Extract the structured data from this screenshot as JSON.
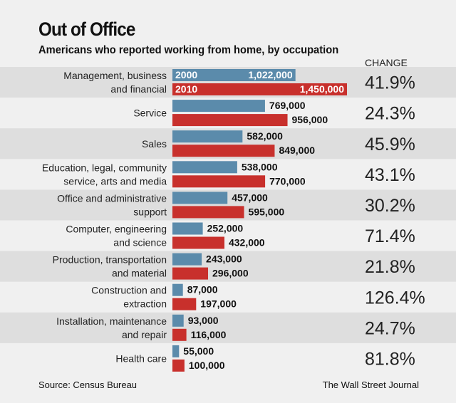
{
  "chart_data": {
    "type": "bar",
    "orientation": "horizontal",
    "title": "Out of Office",
    "subtitle": "Americans who reported working from home, by occupation",
    "change_header": "CHANGE",
    "categories": [
      [
        "Management, business",
        "and financial"
      ],
      [
        "Service"
      ],
      [
        "Sales"
      ],
      [
        "Education, legal, community",
        "service, arts and media"
      ],
      [
        "Office and administrative",
        "support"
      ],
      [
        "Computer, engineering",
        "and science"
      ],
      [
        "Production, transportation",
        "and material"
      ],
      [
        "Construction and",
        "extraction"
      ],
      [
        "Installation, maintenance",
        "and repair"
      ],
      [
        "Health care"
      ]
    ],
    "series": [
      {
        "name": "2000",
        "color": "#5b8bab",
        "values": [
          1022000,
          769000,
          582000,
          538000,
          457000,
          252000,
          243000,
          87000,
          93000,
          55000
        ],
        "labels": [
          "1,022,000",
          "769,000",
          "582,000",
          "538,000",
          "457,000",
          "252,000",
          "243,000",
          "87,000",
          "93,000",
          "55,000"
        ]
      },
      {
        "name": "2010",
        "color": "#c8302c",
        "values": [
          1450000,
          956000,
          849000,
          770000,
          595000,
          432000,
          296000,
          197000,
          116000,
          100000
        ],
        "labels": [
          "1,450,000",
          "956,000",
          "849,000",
          "770,000",
          "595,000",
          "432,000",
          "296,000",
          "197,000",
          "116,000",
          "100,000"
        ]
      }
    ],
    "change": [
      "41.9%",
      "24.3%",
      "45.9%",
      "43.1%",
      "30.2%",
      "71.4%",
      "21.8%",
      "126.4%",
      "24.7%",
      "81.8%"
    ],
    "xlim": [
      0,
      1450000
    ],
    "grid": false,
    "source": "Source: Census Bureau",
    "credit": "The Wall Street Journal"
  },
  "colors": {
    "background": "#f0f0f0",
    "band": "#dedede"
  }
}
